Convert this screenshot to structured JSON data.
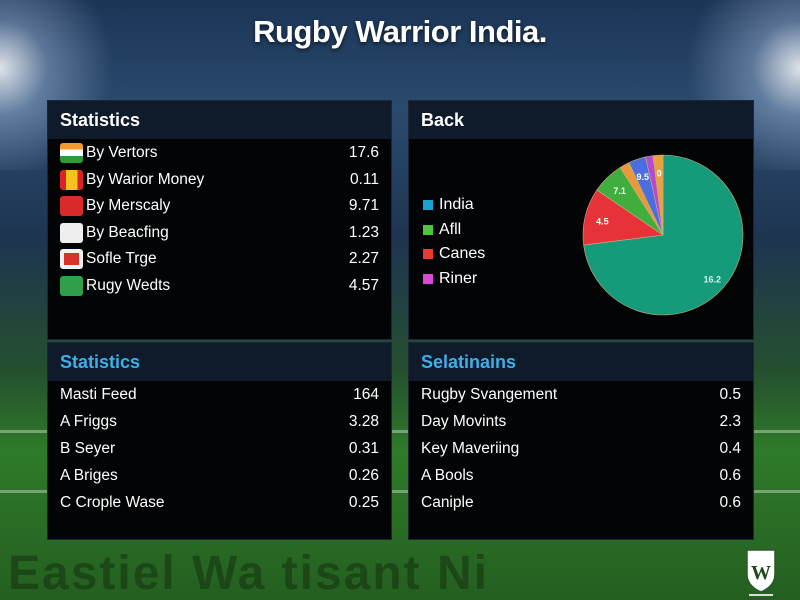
{
  "title": "Rugby Warrior India.",
  "panels": {
    "top_left": {
      "title": "Statistics",
      "rows": [
        {
          "icon": "india-flag-icon",
          "label": "By Vertors",
          "value": "17.6"
        },
        {
          "icon": "red-yellow-flag-icon",
          "label": "By Warior Money",
          "value": "0.11"
        },
        {
          "icon": "red-emblem-icon",
          "label": "By Merscaly",
          "value": "9.71"
        },
        {
          "icon": "crest-icon",
          "label": "By Beacfing",
          "value": "1.23"
        },
        {
          "icon": "red-crest-icon",
          "label": "Sofle Trge",
          "value": "2.27"
        },
        {
          "icon": "green-badge-icon",
          "label": "Rugy Wedts",
          "value": "4.57"
        }
      ]
    },
    "top_right": {
      "title": "Back"
    },
    "bottom_left": {
      "title": "Statistics",
      "rows": [
        {
          "label": "Masti Feed",
          "value": "164"
        },
        {
          "label": "A Friggs",
          "value": "3.28"
        },
        {
          "label": "B Seyer",
          "value": "0.31"
        },
        {
          "label": "A Briges",
          "value": "0.26"
        },
        {
          "label": "C Crople Wase",
          "value": "0.25"
        }
      ]
    },
    "bottom_right": {
      "title": "Selatinains",
      "rows": [
        {
          "label": "Rugby Svangement",
          "value": "0.5"
        },
        {
          "label": "Day Movints",
          "value": "2.3"
        },
        {
          "label": "Key Maveriing",
          "value": "0.4"
        },
        {
          "label": "A Bools",
          "value": "0.6"
        },
        {
          "label": "Caniple",
          "value": "0.6"
        }
      ]
    }
  },
  "chart_data": {
    "type": "pie",
    "legend": [
      {
        "name": "India",
        "color": "#1ba3d0"
      },
      {
        "name": "Afll",
        "color": "#4cc63a"
      },
      {
        "name": "Canes",
        "color": "#ee3a2e"
      },
      {
        "name": "Riner",
        "color": "#d94ad6"
      }
    ],
    "legend_placement": "left",
    "slices": [
      {
        "value": 73,
        "label": "16.2",
        "color": "#169b7a"
      },
      {
        "value": 11.5,
        "label": "4.5",
        "color": "#e8323a"
      },
      {
        "value": 6.5,
        "label": "7.1",
        "color": "#3fae3d"
      },
      {
        "value": 2,
        "label": "",
        "color": "#e89a3a"
      },
      {
        "value": 3.5,
        "label": "9.5",
        "color": "#4a6ee0"
      },
      {
        "value": 1.5,
        "label": "",
        "color": "#b44ad0"
      },
      {
        "value": 2,
        "label": "0",
        "color": "#e8a040"
      }
    ]
  },
  "footer": {
    "watermark": "Eastiel Wa tisant Ni",
    "logo_text": "W"
  }
}
